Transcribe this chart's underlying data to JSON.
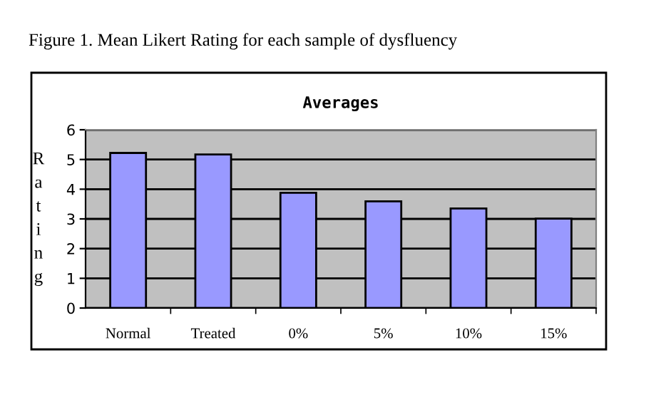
{
  "chart_data": {
    "type": "bar",
    "title": "Averages",
    "ylabel": "Rating",
    "annotations": [
      "Figure 1. Mean Likert Rating for each sample of dysfluency"
    ],
    "categories": [
      "Normal",
      "Treated",
      "0%",
      "5%",
      "10%",
      "15%"
    ],
    "values": [
      5.22,
      5.17,
      3.88,
      3.59,
      3.35,
      3.01
    ],
    "color": "#9999ff",
    "ylim": [
      0,
      6
    ],
    "yticks": [
      0,
      1,
      2,
      3,
      4,
      5,
      6
    ],
    "grid": "y",
    "legend": false
  }
}
